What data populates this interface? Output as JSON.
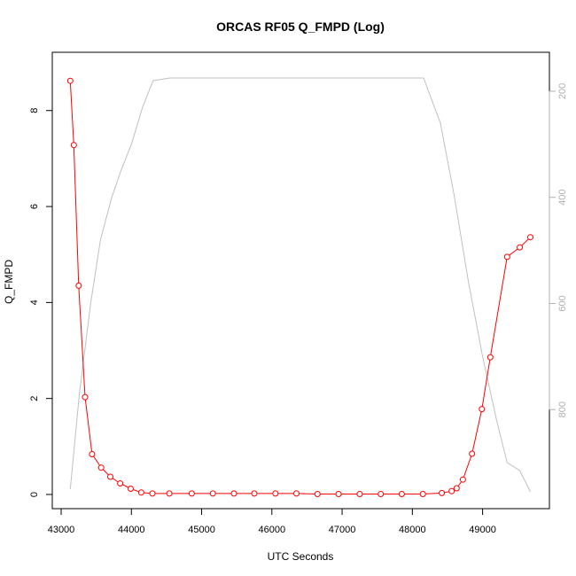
{
  "chart_data": {
    "type": "line",
    "title": "ORCAS RF05 Q_FMPD (Log)",
    "xlabel": "UTC Seconds",
    "ylabel": "Q_FMPD",
    "xlim": [
      43000,
      49800
    ],
    "ylim": [
      0,
      8.9
    ],
    "x_ticks": [
      "43000",
      "44000",
      "45000",
      "46000",
      "47000",
      "48000",
      "49000"
    ],
    "y_ticks": [
      "0",
      "2",
      "4",
      "6",
      "8"
    ],
    "y2_ticks": [
      "200",
      "400",
      "600",
      "800"
    ],
    "y2_reversed": true,
    "y2_lim": [
      155,
      960
    ],
    "grid": false,
    "colors": {
      "primary": "#ff0000",
      "secondary": "#c0c0c0"
    },
    "series": [
      {
        "axis": "left",
        "style": "line-with-circles",
        "color": "#ff0000",
        "x": [
          43130,
          43180,
          43250,
          43340,
          43440,
          43570,
          43700,
          43840,
          43990,
          44140,
          44300,
          44540,
          44860,
          45160,
          45460,
          45750,
          46050,
          46350,
          46650,
          46950,
          47250,
          47550,
          47850,
          48150,
          48420,
          48560,
          48630,
          48720,
          48850,
          48990,
          49110,
          49350,
          49530,
          49680
        ],
        "y": [
          8.62,
          7.28,
          4.35,
          2.03,
          0.84,
          0.56,
          0.37,
          0.23,
          0.12,
          0.04,
          0.02,
          0.02,
          0.02,
          0.02,
          0.02,
          0.02,
          0.02,
          0.02,
          0.01,
          0.01,
          0.01,
          0.01,
          0.01,
          0.01,
          0.03,
          0.07,
          0.13,
          0.31,
          0.85,
          1.78,
          2.86,
          4.95,
          5.15,
          5.36
        ]
      },
      {
        "axis": "right",
        "style": "line",
        "color": "#c0c0c0",
        "x": [
          43130,
          43260,
          43420,
          43560,
          43720,
          43850,
          44000,
          44160,
          44310,
          44550,
          45000,
          46000,
          47000,
          48160,
          48400,
          48600,
          48800,
          49000,
          49200,
          49350,
          49530,
          49680
        ],
        "y": [
          950,
          770,
          600,
          480,
          400,
          350,
          300,
          230,
          180,
          175,
          175,
          175,
          175,
          175,
          260,
          400,
          560,
          700,
          820,
          900,
          915,
          955
        ]
      }
    ]
  }
}
